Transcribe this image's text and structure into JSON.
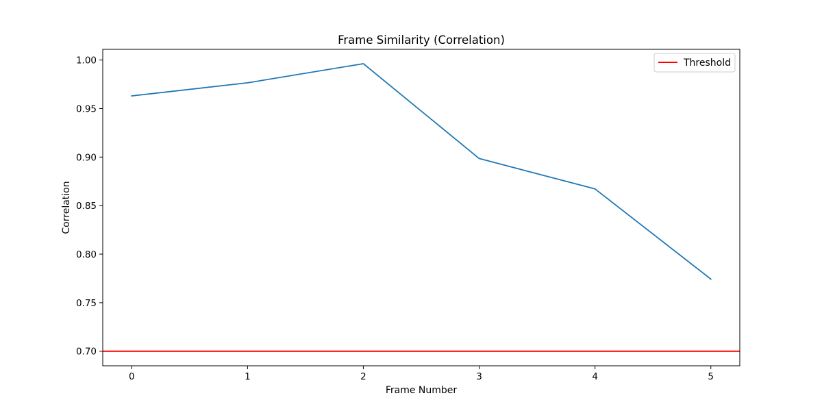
{
  "chart_data": {
    "type": "line",
    "title": "Frame Similarity (Correlation)",
    "xlabel": "Frame Number",
    "ylabel": "Correlation",
    "xlim": [
      -0.25,
      5.25
    ],
    "ylim": [
      0.685,
      1.011
    ],
    "x_ticks": [
      0,
      1,
      2,
      3,
      4,
      5
    ],
    "y_ticks": [
      0.7,
      0.75,
      0.8,
      0.85,
      0.9,
      0.95,
      1.0
    ],
    "x_tick_labels": [
      "0",
      "1",
      "2",
      "3",
      "4",
      "5"
    ],
    "y_tick_labels": [
      "0.70",
      "0.75",
      "0.80",
      "0.85",
      "0.90",
      "0.95",
      "1.00"
    ],
    "series": [
      {
        "x": [
          0,
          1,
          2,
          3,
          4,
          5
        ],
        "values": [
          0.963,
          0.9765,
          0.9962,
          0.8985,
          0.8672,
          0.7743
        ],
        "color": "#1f77b4"
      }
    ],
    "hlines": [
      {
        "name": "Threshold",
        "y": 0.7,
        "color": "#ff0000"
      }
    ],
    "legend": {
      "position": "top-right",
      "entries": [
        "Threshold"
      ]
    },
    "grid": false
  }
}
